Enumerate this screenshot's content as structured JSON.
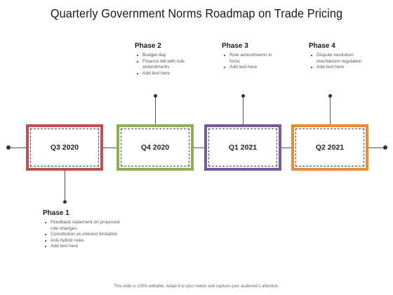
{
  "title": "Quarterly Government Norms Roadmap on Trade Pricing",
  "quarters": [
    "Q3 2020",
    "Q4 2020",
    "Q1 2021",
    "Q2 2021"
  ],
  "phases": [
    {
      "title": "Phase 1",
      "items": [
        "Feedback statement on proposed rule changes",
        "Constitution on interest limitation",
        "Anti-hybrid rules",
        "Add text here"
      ]
    },
    {
      "title": "Phase 2",
      "items": [
        "Budget day",
        "Finance bill with rule amendments",
        "Add text here"
      ]
    },
    {
      "title": "Phase 3",
      "items": [
        "Rule amendments in force",
        "Add text here"
      ]
    },
    {
      "title": "Phase 4",
      "items": [
        "Dispute resolution mechanism regulation",
        "Add text here"
      ]
    }
  ],
  "colors": {
    "q1_border": "#c0504d",
    "q2_border": "#8cb04b",
    "q3_border": "#7a58a0",
    "q4_border": "#ee8a36"
  },
  "footer": "This slide is 100% editable. Adapt it to your needs and capture your audience's attention."
}
